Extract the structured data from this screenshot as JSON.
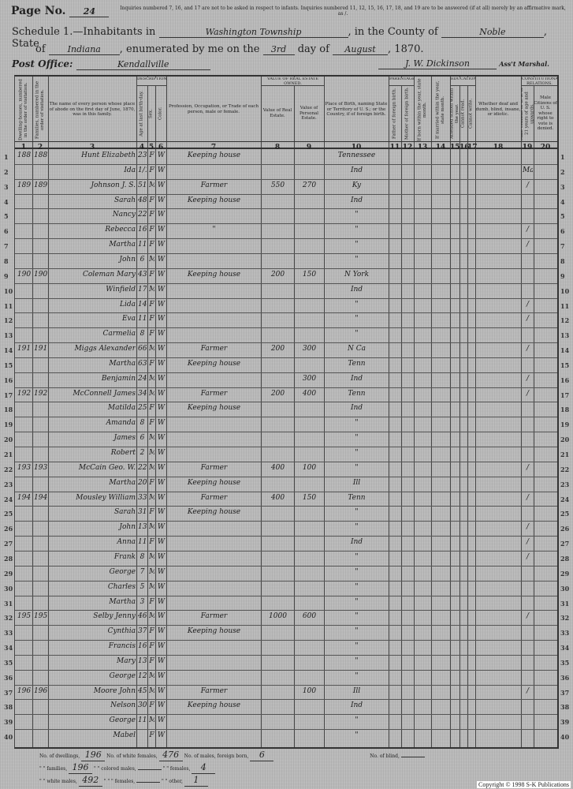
{
  "header": {
    "page_no_label": "Page No.",
    "page_no": "24",
    "instruction": "Inquiries numbered 7, 16, and 17 are not to be asked in respect to infants. Inquiries numbered 11, 12, 15, 16, 17, 18, and 19 are to be answered (if at all) merely by an affirmative mark, as /.",
    "schedule_label": "Schedule 1.—Inhabitants in",
    "township": "Washington Township",
    "county_label": ", in the County of",
    "county": "Noble",
    "state_label": ", State",
    "of_label": "of",
    "state": "Indiana",
    "enumerated_label": ", enumerated by me on the",
    "day": "3rd",
    "day_of_label": "day of",
    "month": "August",
    "year": ", 1870.",
    "post_office_label": "Post Office:",
    "post_office": "Kendallville",
    "marshal_signature": "J. W. Dickinson",
    "marshal_label": "Ass't Marshal."
  },
  "columns": [
    {
      "num": "1",
      "label": "Dwelling-houses, numbered in the order of visitation."
    },
    {
      "num": "2",
      "label": "Families, numbered in the order of visitation."
    },
    {
      "num": "3",
      "label": "The name of every person whose place of abode on the first day of June, 1870, was in this family."
    },
    {
      "num": "4",
      "label": "Age at last birth-day."
    },
    {
      "num": "5",
      "label": "Sex."
    },
    {
      "num": "6",
      "label": "Color."
    },
    {
      "num": "7",
      "label": "Profession, Occupation, or Trade of each person, male or female."
    },
    {
      "num": "8",
      "label": "Value of Real Estate."
    },
    {
      "num": "9",
      "label": "Value of Personal Estate."
    },
    {
      "num": "10",
      "label": "Place of Birth, naming State or Territory of U. S.; or the Country, if of foreign birth."
    },
    {
      "num": "11",
      "label": "Father of foreign birth."
    },
    {
      "num": "12",
      "label": "Mother of foreign birth."
    },
    {
      "num": "13",
      "label": "If born within the year, state month."
    },
    {
      "num": "14",
      "label": "If married within the year, state month."
    },
    {
      "num": "15",
      "label": "Attended school within the year."
    },
    {
      "num": "16",
      "label": "Cannot read."
    },
    {
      "num": "17",
      "label": "Cannot write."
    },
    {
      "num": "18",
      "label": "Whether deaf and dumb, blind, insane, or idiotic."
    },
    {
      "num": "19",
      "label": "Male Citizens of U. S. of 21 years of age and upwards."
    },
    {
      "num": "20",
      "label": "Male Citizens of U. S. whose right to vote is denied."
    }
  ],
  "group_headers": {
    "description": "Description.",
    "value_real_estate": "Value of Real Estate owned.",
    "parentage": "Parentage.",
    "education": "Education.",
    "constitutional": "Constitutional Relations."
  },
  "rows": [
    {
      "line": "1",
      "dwelling": "188",
      "family": "188",
      "name": "Hunt Elizabeth",
      "age": "23",
      "sex": "F",
      "color": "W",
      "occupation": "Keeping house",
      "real": "",
      "personal": "",
      "birth": "Tennessee",
      "marks": ""
    },
    {
      "line": "2",
      "dwelling": "",
      "family": "",
      "name": "Ida",
      "age": "1/12",
      "sex": "F",
      "color": "W",
      "occupation": "",
      "real": "",
      "personal": "",
      "birth": "Ind",
      "marks": "May"
    },
    {
      "line": "3",
      "dwelling": "189",
      "family": "189",
      "name": "Johnson J. S.",
      "age": "51",
      "sex": "M",
      "color": "W",
      "occupation": "Farmer",
      "real": "550",
      "personal": "270",
      "birth": "Ky",
      "marks": "/"
    },
    {
      "line": "4",
      "dwelling": "",
      "family": "",
      "name": "Sarah",
      "age": "48",
      "sex": "F",
      "color": "W",
      "occupation": "Keeping house",
      "real": "",
      "personal": "",
      "birth": "Ind",
      "marks": ""
    },
    {
      "line": "5",
      "dwelling": "",
      "family": "",
      "name": "Nancy",
      "age": "22",
      "sex": "F",
      "color": "W",
      "occupation": "",
      "real": "",
      "personal": "",
      "birth": "\"",
      "marks": ""
    },
    {
      "line": "6",
      "dwelling": "",
      "family": "",
      "name": "Rebecca",
      "age": "16",
      "sex": "F",
      "color": "W",
      "occupation": "\"",
      "real": "",
      "personal": "",
      "birth": "\"",
      "marks": "/"
    },
    {
      "line": "7",
      "dwelling": "",
      "family": "",
      "name": "Martha",
      "age": "11",
      "sex": "F",
      "color": "W",
      "occupation": "",
      "real": "",
      "personal": "",
      "birth": "\"",
      "marks": "/"
    },
    {
      "line": "8",
      "dwelling": "",
      "family": "",
      "name": "John",
      "age": "6",
      "sex": "M",
      "color": "W",
      "occupation": "",
      "real": "",
      "personal": "",
      "birth": "\"",
      "marks": ""
    },
    {
      "line": "9",
      "dwelling": "190",
      "family": "190",
      "name": "Coleman Mary",
      "age": "43",
      "sex": "F",
      "color": "W",
      "occupation": "Keeping house",
      "real": "200",
      "personal": "150",
      "birth": "N York",
      "marks": ""
    },
    {
      "line": "10",
      "dwelling": "",
      "family": "",
      "name": "Winfield",
      "age": "17",
      "sex": "M",
      "color": "W",
      "occupation": "",
      "real": "",
      "personal": "",
      "birth": "Ind",
      "marks": ""
    },
    {
      "line": "11",
      "dwelling": "",
      "family": "",
      "name": "Lida",
      "age": "14",
      "sex": "F",
      "color": "W",
      "occupation": "",
      "real": "",
      "personal": "",
      "birth": "\"",
      "marks": "/"
    },
    {
      "line": "12",
      "dwelling": "",
      "family": "",
      "name": "Eva",
      "age": "11",
      "sex": "F",
      "color": "W",
      "occupation": "",
      "real": "",
      "personal": "",
      "birth": "\"",
      "marks": "/"
    },
    {
      "line": "13",
      "dwelling": "",
      "family": "",
      "name": "Carmelia",
      "age": "8",
      "sex": "F",
      "color": "W",
      "occupation": "",
      "real": "",
      "personal": "",
      "birth": "\"",
      "marks": ""
    },
    {
      "line": "14",
      "dwelling": "191",
      "family": "191",
      "name": "Miggs Alexander",
      "age": "66",
      "sex": "M",
      "color": "W",
      "occupation": "Farmer",
      "real": "200",
      "personal": "300",
      "birth": "N Ca",
      "marks": "/"
    },
    {
      "line": "15",
      "dwelling": "",
      "family": "",
      "name": "Martha",
      "age": "63",
      "sex": "F",
      "color": "W",
      "occupation": "Keeping house",
      "real": "",
      "personal": "",
      "birth": "Tenn",
      "marks": ""
    },
    {
      "line": "16",
      "dwelling": "",
      "family": "",
      "name": "Benjamin",
      "age": "24",
      "sex": "M",
      "color": "W",
      "occupation": "",
      "real": "",
      "personal": "300",
      "birth": "Ind",
      "marks": "/"
    },
    {
      "line": "17",
      "dwelling": "192",
      "family": "192",
      "name": "McConnell James",
      "age": "34",
      "sex": "M",
      "color": "W",
      "occupation": "Farmer",
      "real": "200",
      "personal": "400",
      "birth": "Tenn",
      "marks": "/"
    },
    {
      "line": "18",
      "dwelling": "",
      "family": "",
      "name": "Matilda",
      "age": "25",
      "sex": "F",
      "color": "W",
      "occupation": "Keeping house",
      "real": "",
      "personal": "",
      "birth": "Ind",
      "marks": ""
    },
    {
      "line": "19",
      "dwelling": "",
      "family": "",
      "name": "Amanda",
      "age": "8",
      "sex": "F",
      "color": "W",
      "occupation": "",
      "real": "",
      "personal": "",
      "birth": "\"",
      "marks": ""
    },
    {
      "line": "20",
      "dwelling": "",
      "family": "",
      "name": "James",
      "age": "6",
      "sex": "M",
      "color": "W",
      "occupation": "",
      "real": "",
      "personal": "",
      "birth": "\"",
      "marks": ""
    },
    {
      "line": "21",
      "dwelling": "",
      "family": "",
      "name": "Robert",
      "age": "2",
      "sex": "M",
      "color": "W",
      "occupation": "",
      "real": "",
      "personal": "",
      "birth": "\"",
      "marks": ""
    },
    {
      "line": "22",
      "dwelling": "193",
      "family": "193",
      "name": "McCain Geo. W.",
      "age": "22",
      "sex": "M",
      "color": "W",
      "occupation": "Farmer",
      "real": "400",
      "personal": "100",
      "birth": "\"",
      "marks": "/"
    },
    {
      "line": "23",
      "dwelling": "",
      "family": "",
      "name": "Martha",
      "age": "20",
      "sex": "F",
      "color": "W",
      "occupation": "Keeping house",
      "real": "",
      "personal": "",
      "birth": "Ill",
      "marks": ""
    },
    {
      "line": "24",
      "dwelling": "194",
      "family": "194",
      "name": "Mousley William",
      "age": "33",
      "sex": "M",
      "color": "W",
      "occupation": "Farmer",
      "real": "400",
      "personal": "150",
      "birth": "Tenn",
      "marks": "/"
    },
    {
      "line": "25",
      "dwelling": "",
      "family": "",
      "name": "Sarah",
      "age": "31",
      "sex": "F",
      "color": "W",
      "occupation": "Keeping house",
      "real": "",
      "personal": "",
      "birth": "\"",
      "marks": ""
    },
    {
      "line": "26",
      "dwelling": "",
      "family": "",
      "name": "John",
      "age": "13",
      "sex": "M",
      "color": "W",
      "occupation": "",
      "real": "",
      "personal": "",
      "birth": "\"",
      "marks": "/"
    },
    {
      "line": "27",
      "dwelling": "",
      "family": "",
      "name": "Anna",
      "age": "11",
      "sex": "F",
      "color": "W",
      "occupation": "",
      "real": "",
      "personal": "",
      "birth": "Ind",
      "marks": "/"
    },
    {
      "line": "28",
      "dwelling": "",
      "family": "",
      "name": "Frank",
      "age": "8",
      "sex": "M",
      "color": "W",
      "occupation": "",
      "real": "",
      "personal": "",
      "birth": "\"",
      "marks": "/"
    },
    {
      "line": "29",
      "dwelling": "",
      "family": "",
      "name": "George",
      "age": "7",
      "sex": "M",
      "color": "W",
      "occupation": "",
      "real": "",
      "personal": "",
      "birth": "\"",
      "marks": ""
    },
    {
      "line": "30",
      "dwelling": "",
      "family": "",
      "name": "Charles",
      "age": "5",
      "sex": "M",
      "color": "W",
      "occupation": "",
      "real": "",
      "personal": "",
      "birth": "\"",
      "marks": ""
    },
    {
      "line": "31",
      "dwelling": "",
      "family": "",
      "name": "Martha",
      "age": "3",
      "sex": "F",
      "color": "W",
      "occupation": "",
      "real": "",
      "personal": "",
      "birth": "\"",
      "marks": ""
    },
    {
      "line": "32",
      "dwelling": "195",
      "family": "195",
      "name": "Selby Jenny",
      "age": "46",
      "sex": "M",
      "color": "W",
      "occupation": "Farmer",
      "real": "1000",
      "personal": "600",
      "birth": "\"",
      "marks": "/"
    },
    {
      "line": "33",
      "dwelling": "",
      "family": "",
      "name": "Cynthia",
      "age": "37",
      "sex": "F",
      "color": "W",
      "occupation": "Keeping house",
      "real": "",
      "personal": "",
      "birth": "\"",
      "marks": ""
    },
    {
      "line": "34",
      "dwelling": "",
      "family": "",
      "name": "Francis",
      "age": "16",
      "sex": "F",
      "color": "W",
      "occupation": "",
      "real": "",
      "personal": "",
      "birth": "\"",
      "marks": ""
    },
    {
      "line": "35",
      "dwelling": "",
      "family": "",
      "name": "Mary",
      "age": "13",
      "sex": "F",
      "color": "W",
      "occupation": "",
      "real": "",
      "personal": "",
      "birth": "\"",
      "marks": ""
    },
    {
      "line": "36",
      "dwelling": "",
      "family": "",
      "name": "George",
      "age": "12",
      "sex": "M",
      "color": "W",
      "occupation": "",
      "real": "",
      "personal": "",
      "birth": "\"",
      "marks": ""
    },
    {
      "line": "37",
      "dwelling": "196",
      "family": "196",
      "name": "Moore John",
      "age": "45",
      "sex": "M",
      "color": "W",
      "occupation": "Farmer",
      "real": "",
      "personal": "100",
      "birth": "Ill",
      "marks": "/"
    },
    {
      "line": "38",
      "dwelling": "",
      "family": "",
      "name": "Nelson",
      "age": "30",
      "sex": "F",
      "color": "W",
      "occupation": "Keeping house",
      "real": "",
      "personal": "",
      "birth": "Ind",
      "marks": ""
    },
    {
      "line": "39",
      "dwelling": "",
      "family": "",
      "name": "George",
      "age": "11",
      "sex": "M",
      "color": "W",
      "occupation": "",
      "real": "",
      "personal": "",
      "birth": "\"",
      "marks": ""
    },
    {
      "line": "40",
      "dwelling": "",
      "family": "",
      "name": "Mabel",
      "age": "",
      "sex": "F",
      "color": "W",
      "occupation": "",
      "real": "",
      "personal": "",
      "birth": "\"",
      "marks": ""
    }
  ],
  "footer": {
    "dwellings_label": "No. of dwellings,",
    "dwellings": "196",
    "families_label": "\" \" families,",
    "families": "196",
    "white_males_label": "\" \" white males,",
    "white_males": "492",
    "white_females_label": "No. of white females,",
    "white_females": "476",
    "colored_males_label": "\" \" colored males,",
    "colored_males": "",
    "colored_females_label": "\" \" \" females,",
    "colored_females": "",
    "foreign_born_label": "No. of males, foreign born,",
    "foreign_born": "6",
    "females_label": "\" \" females,",
    "females_fb": "4",
    "other_label": "\" \" other,",
    "other": "1",
    "blind_label": "No. of blind,"
  },
  "copyright": "Copyright © 1998 S-K Publications"
}
